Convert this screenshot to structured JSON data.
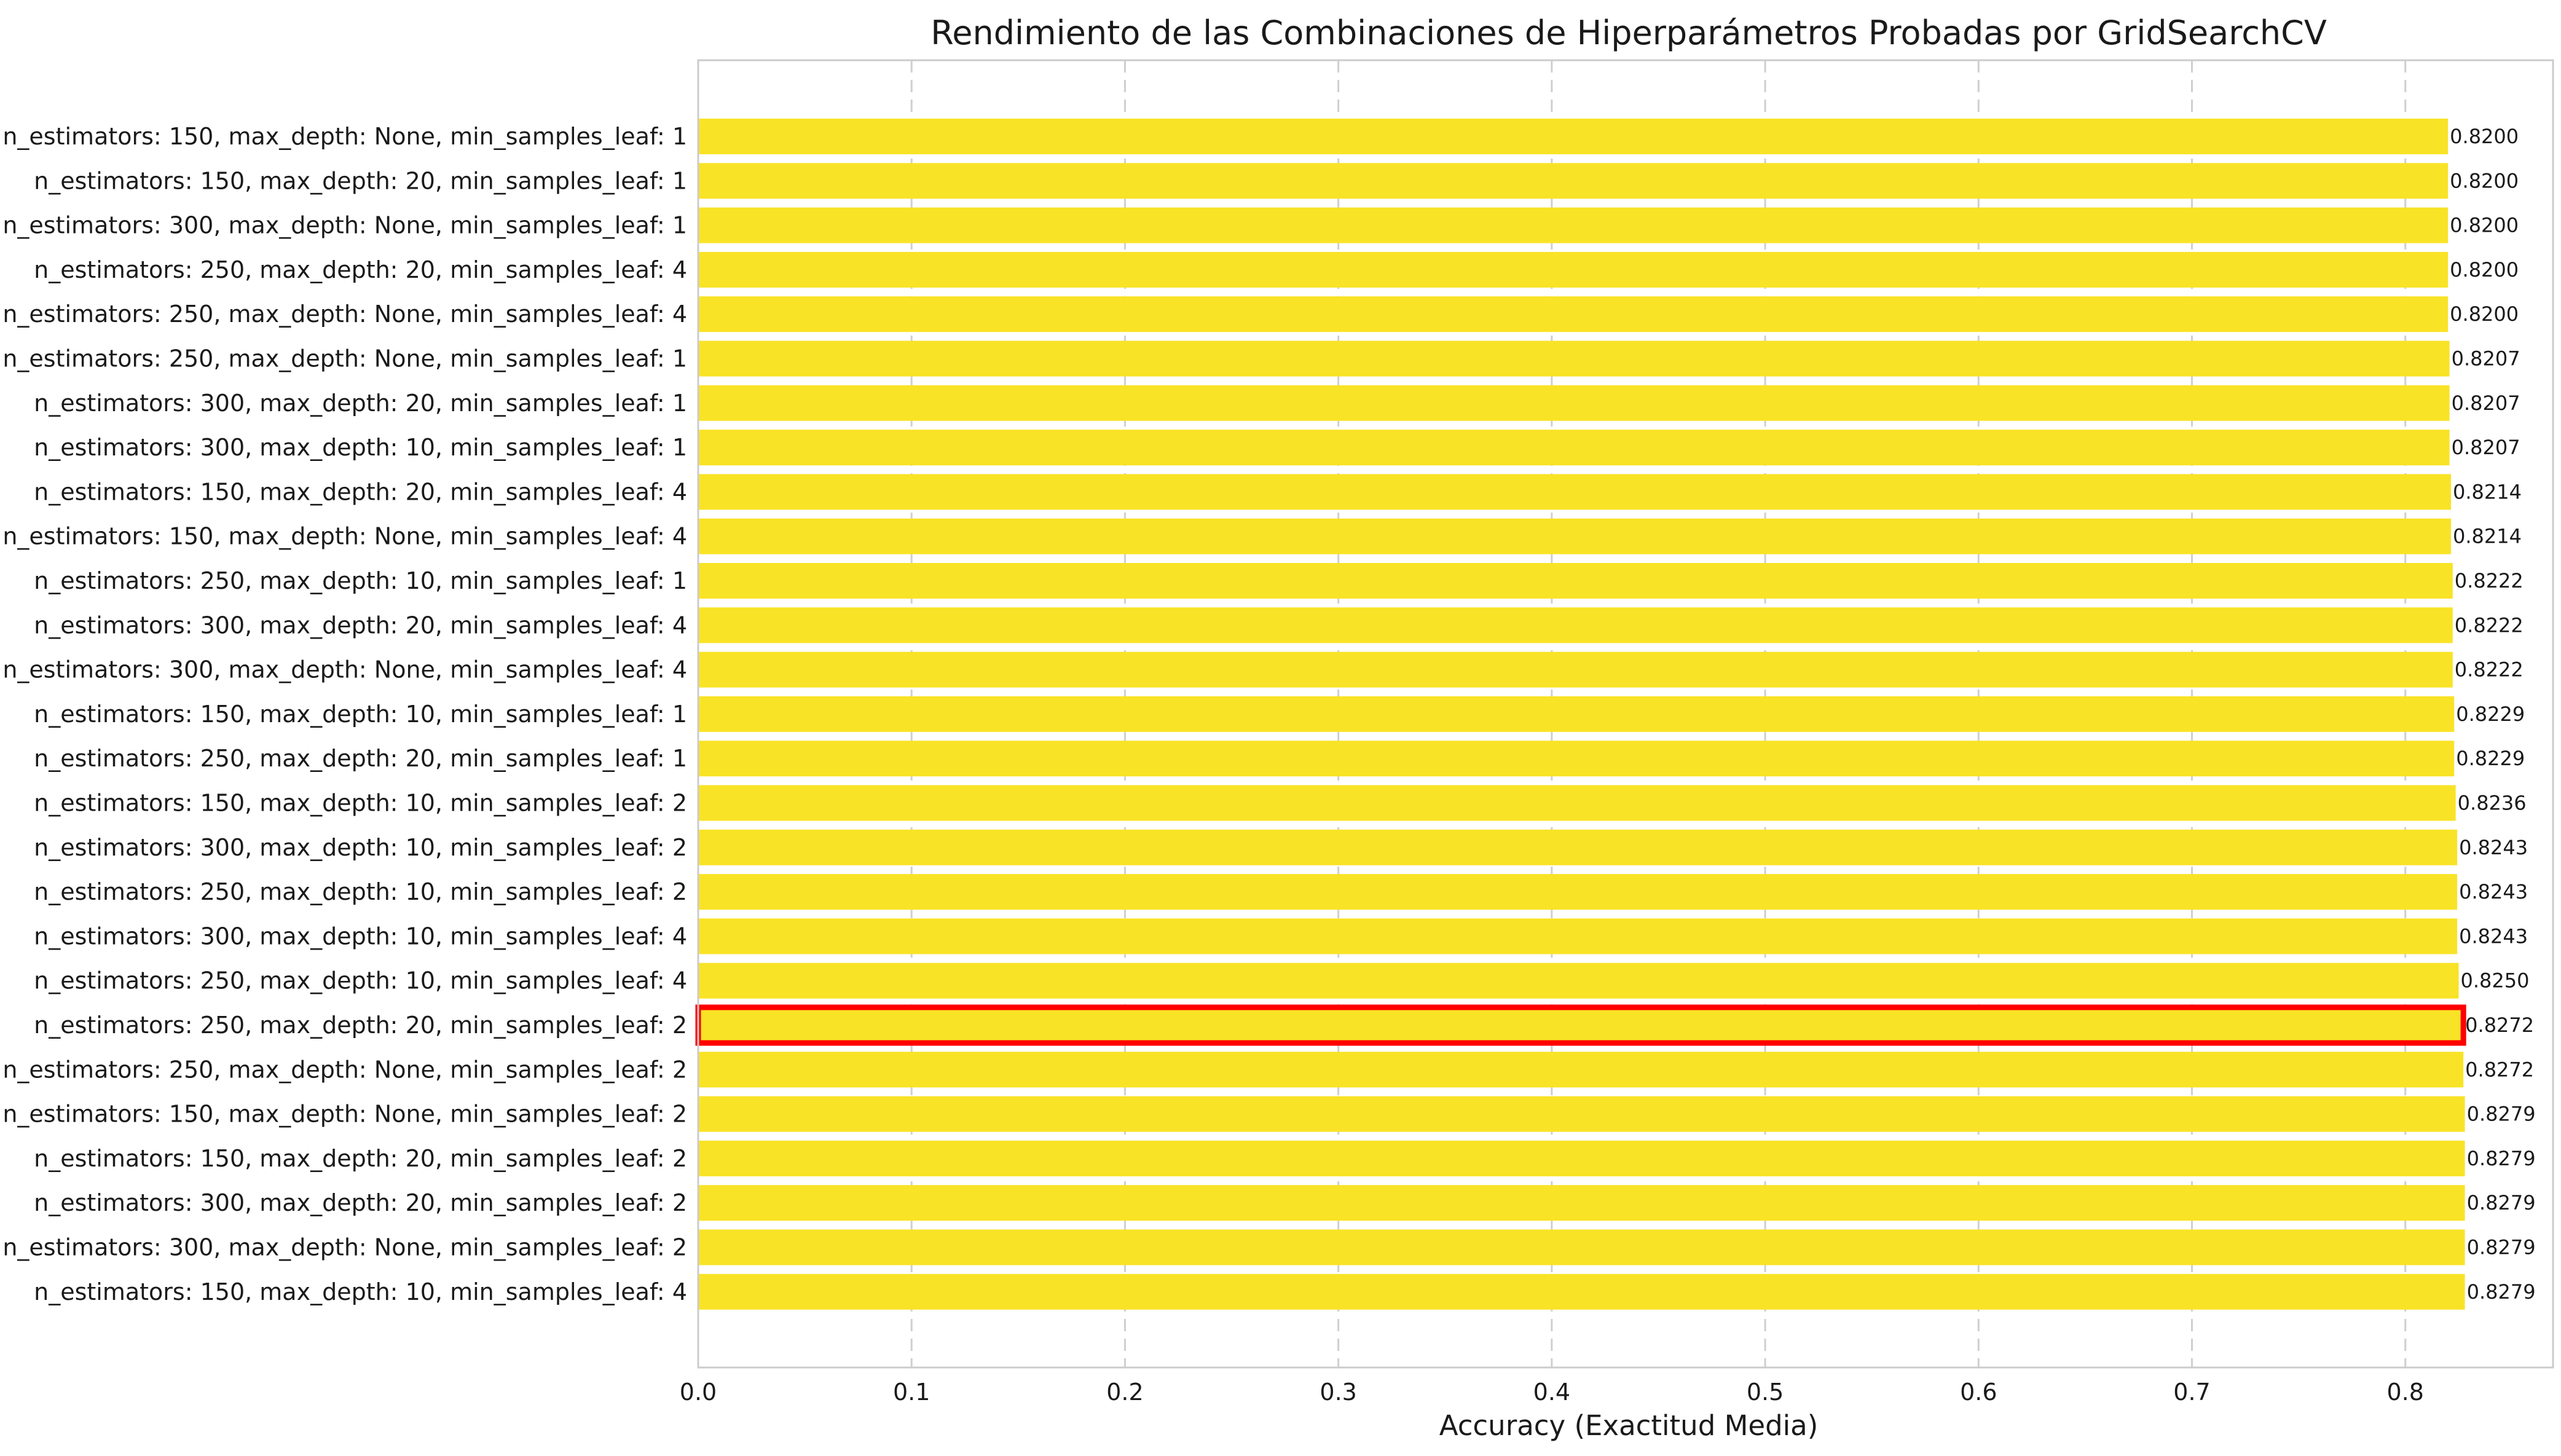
{
  "chart_data": {
    "type": "bar",
    "orientation": "horizontal",
    "title": "Rendimiento de las Combinaciones de Hiperparámetros Probadas por GridSearchCV",
    "xlabel": "Accuracy (Exactitud Media)",
    "ylabel": "",
    "xlim": [
      0,
      0.8692
    ],
    "xticks": [
      "0.0",
      "0.1",
      "0.2",
      "0.3",
      "0.4",
      "0.5",
      "0.6",
      "0.7",
      "0.8"
    ],
    "xtick_values": [
      0,
      0.1,
      0.2,
      0.3,
      0.4,
      0.5,
      0.6,
      0.7,
      0.8
    ],
    "grid": "vertical dashed",
    "bar_color": "#f9e326",
    "highlight_color": "#ff0000",
    "highlight_category": "n_estimators: 250, max_depth: 20, min_samples_leaf: 2",
    "categories": [
      "n_estimators: 150, max_depth: None, min_samples_leaf: 1",
      "n_estimators: 150, max_depth: 20, min_samples_leaf: 1",
      "n_estimators: 300, max_depth: None, min_samples_leaf: 1",
      "n_estimators: 250, max_depth: 20, min_samples_leaf: 4",
      "n_estimators: 250, max_depth: None, min_samples_leaf: 4",
      "n_estimators: 250, max_depth: None, min_samples_leaf: 1",
      "n_estimators: 300, max_depth: 20, min_samples_leaf: 1",
      "n_estimators: 300, max_depth: 10, min_samples_leaf: 1",
      "n_estimators: 150, max_depth: 20, min_samples_leaf: 4",
      "n_estimators: 150, max_depth: None, min_samples_leaf: 4",
      "n_estimators: 250, max_depth: 10, min_samples_leaf: 1",
      "n_estimators: 300, max_depth: 20, min_samples_leaf: 4",
      "n_estimators: 300, max_depth: None, min_samples_leaf: 4",
      "n_estimators: 150, max_depth: 10, min_samples_leaf: 1",
      "n_estimators: 250, max_depth: 20, min_samples_leaf: 1",
      "n_estimators: 150, max_depth: 10, min_samples_leaf: 2",
      "n_estimators: 300, max_depth: 10, min_samples_leaf: 2",
      "n_estimators: 250, max_depth: 10, min_samples_leaf: 2",
      "n_estimators: 300, max_depth: 10, min_samples_leaf: 4",
      "n_estimators: 250, max_depth: 10, min_samples_leaf: 4",
      "n_estimators: 250, max_depth: 20, min_samples_leaf: 2",
      "n_estimators: 250, max_depth: None, min_samples_leaf: 2",
      "n_estimators: 150, max_depth: None, min_samples_leaf: 2",
      "n_estimators: 150, max_depth: 20, min_samples_leaf: 2",
      "n_estimators: 300, max_depth: 20, min_samples_leaf: 2",
      "n_estimators: 300, max_depth: None, min_samples_leaf: 2",
      "n_estimators: 150, max_depth: 10, min_samples_leaf: 4"
    ],
    "values": [
      0.82,
      0.82,
      0.82,
      0.82,
      0.82,
      0.8207,
      0.8207,
      0.8207,
      0.8214,
      0.8214,
      0.8222,
      0.8222,
      0.8222,
      0.8229,
      0.8229,
      0.8236,
      0.8243,
      0.8243,
      0.8243,
      0.825,
      0.8272,
      0.8272,
      0.8279,
      0.8279,
      0.8279,
      0.8279,
      0.8279
    ],
    "value_labels": [
      "0.8200",
      "0.8200",
      "0.8200",
      "0.8200",
      "0.8200",
      "0.8207",
      "0.8207",
      "0.8207",
      "0.8214",
      "0.8214",
      "0.8222",
      "0.8222",
      "0.8222",
      "0.8229",
      "0.8229",
      "0.8236",
      "0.8243",
      "0.8243",
      "0.8243",
      "0.8250",
      "0.8272",
      "0.8272",
      "0.8279",
      "0.8279",
      "0.8279",
      "0.8279",
      "0.8279"
    ]
  }
}
